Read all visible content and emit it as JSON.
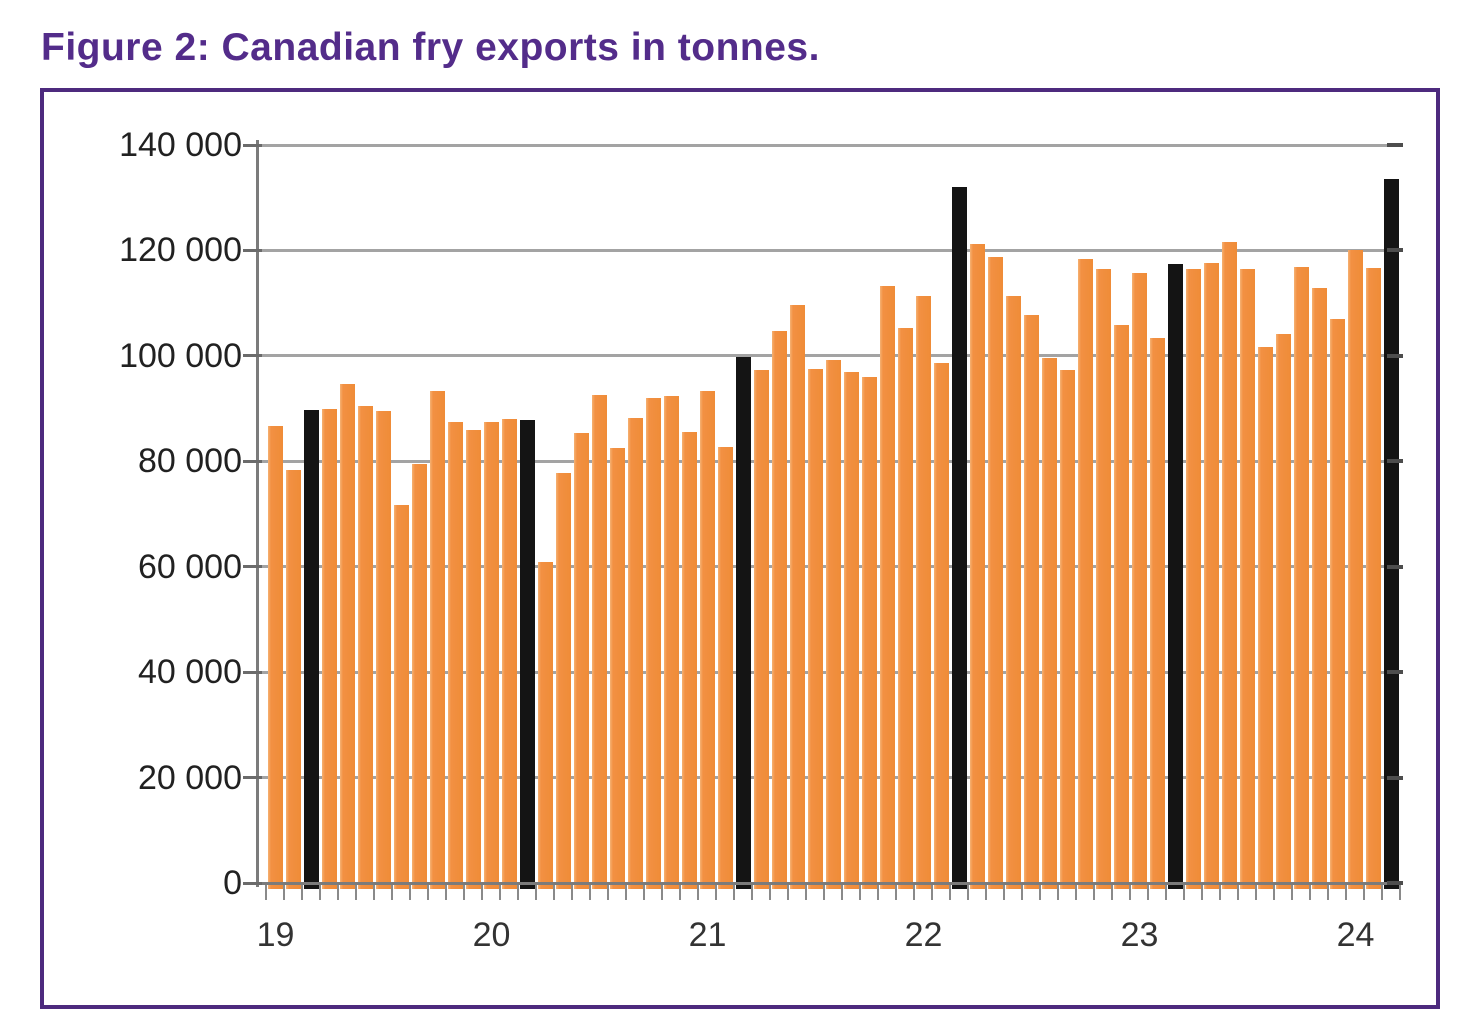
{
  "figure": {
    "title": "Figure 2: Canadian fry exports in tonnes.",
    "title_color": "#532c8a",
    "frame_color": "#4d2a7e"
  },
  "chart_data": {
    "type": "bar",
    "title": "Figure 2: Canadian fry exports in tonnes.",
    "unit": "tonnes",
    "description": "Monthly Canadian fry (frozen potato) export volumes; one bar per month from January 2019 to March 2024. Black bars highlight the same month of each year.",
    "ylim": [
      0,
      140000
    ],
    "y_tick_interval": 20000,
    "y_tick_labels": [
      "140 000",
      "120 000",
      "100 000",
      "80 000",
      "60 000",
      "40 000",
      "20 000",
      "0"
    ],
    "x_tick_labels": [
      "19",
      "20",
      "21",
      "22",
      "23",
      "24"
    ],
    "x_tick_month_indices": [
      0,
      12,
      24,
      36,
      48,
      60
    ],
    "grid": true,
    "legend": "none",
    "bar_colors": {
      "default": "#F0913E",
      "highlight": "#141414"
    },
    "highlight_month_indices": [
      2,
      14,
      26,
      38,
      50,
      62
    ],
    "values": [
      86700,
      78300,
      89800,
      90000,
      94700,
      90500,
      89600,
      71800,
      79500,
      93300,
      87400,
      86000,
      87400,
      88000,
      87800,
      60800,
      77800,
      85300,
      92600,
      82500,
      88300,
      92100,
      92400,
      85500,
      93300,
      82700,
      99700,
      97300,
      104800,
      109700,
      97500,
      99300,
      96900,
      95900,
      113300,
      105200,
      111300,
      98700,
      132000,
      121200,
      118800,
      111400,
      107800,
      99600,
      97400,
      118300,
      116400,
      105800,
      115800,
      103400,
      117500,
      116400,
      117700,
      121600,
      116400,
      101600,
      104100,
      116800,
      112800,
      106900,
      120000,
      116600,
      133600
    ]
  }
}
